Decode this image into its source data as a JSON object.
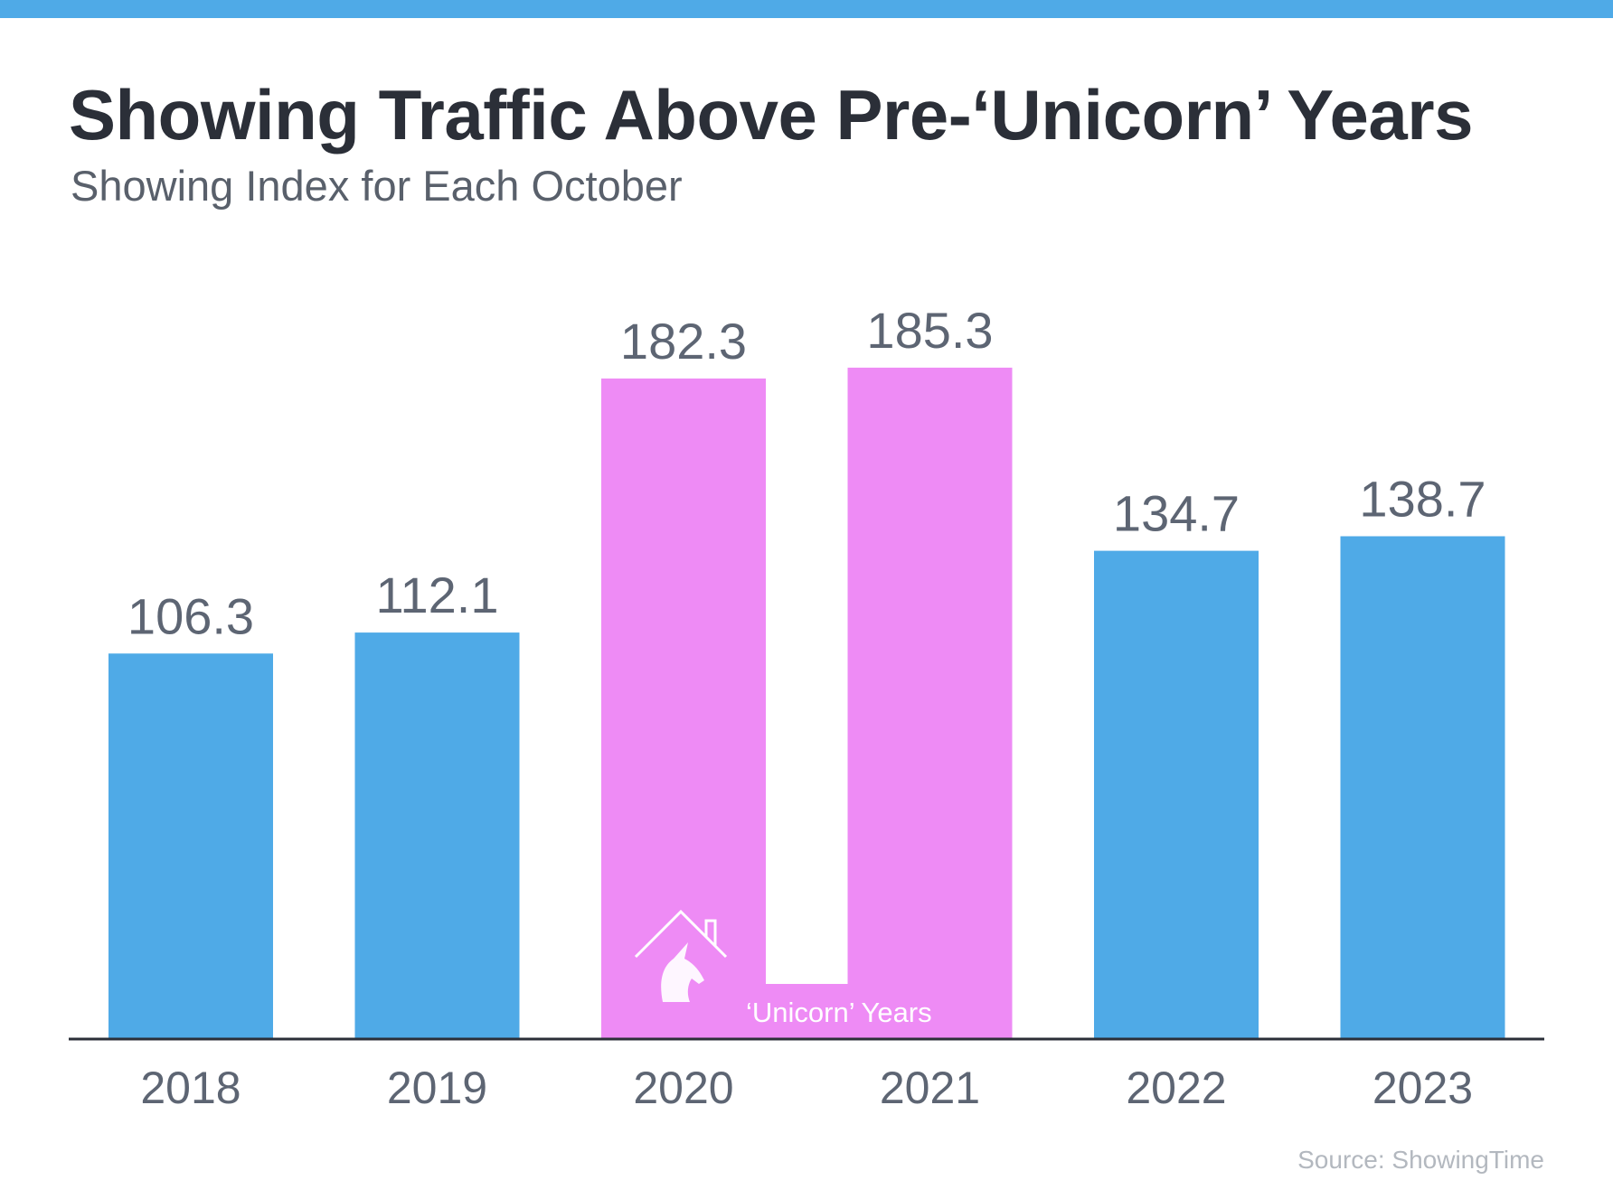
{
  "header": {
    "title": "Showing Traffic Above Pre-‘Unicorn’ Years",
    "subtitle": "Showing Index for Each October"
  },
  "colors": {
    "accent_bar": "#4faae7",
    "bar_default": "#4faae7",
    "bar_highlight": "#ee8bf5",
    "axis": "#2b2f38",
    "value_label": "#5d6573",
    "tick_label": "#5d6573",
    "source_text": "#b3b8bf"
  },
  "chart_data": {
    "type": "bar",
    "categories": [
      "2018",
      "2019",
      "2020",
      "2021",
      "2022",
      "2023"
    ],
    "values": [
      106.3,
      112.1,
      182.3,
      185.3,
      134.7,
      138.7
    ],
    "value_labels": [
      "106.3",
      "112.1",
      "182.3",
      "185.3",
      "134.7",
      "138.7"
    ],
    "highlighted": [
      "2020",
      "2021"
    ],
    "title": "Showing Traffic Above Pre-‘Unicorn’ Years",
    "subtitle": "Showing Index for Each October",
    "ylim": [
      0,
      212
    ],
    "grid": false,
    "annotation": {
      "text": "‘Unicorn’ Years",
      "icon": "unicorn-house-icon",
      "spans": [
        "2020",
        "2021"
      ]
    }
  },
  "footer": {
    "source": "Source: ShowingTime"
  }
}
